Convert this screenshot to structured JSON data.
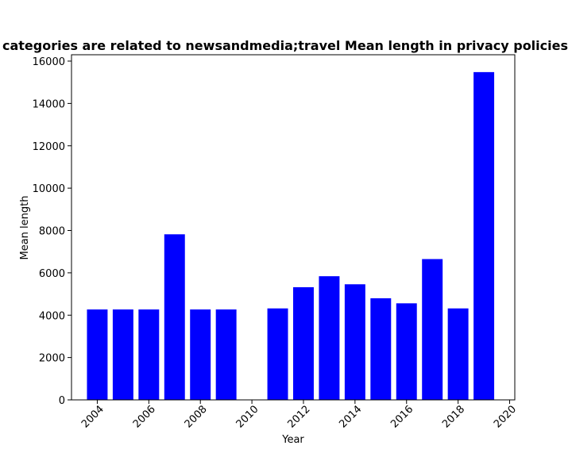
{
  "chart_data": {
    "type": "bar",
    "title": "categories are related to newsandmedia;travel Mean length in privacy policies",
    "xlabel": "Year",
    "ylabel": "Mean length",
    "x": [
      2004,
      2005,
      2006,
      2007,
      2008,
      2009,
      2011,
      2012,
      2013,
      2014,
      2015,
      2016,
      2017,
      2018,
      2019
    ],
    "values": [
      4270,
      4270,
      4270,
      7820,
      4270,
      4270,
      4320,
      5320,
      5840,
      5460,
      4800,
      4560,
      6650,
      4320,
      15480
    ],
    "xlim": [
      2003.0,
      2020.2
    ],
    "ylim": [
      0,
      16300
    ],
    "xticks": [
      2004,
      2006,
      2008,
      2010,
      2012,
      2014,
      2016,
      2018,
      2020
    ],
    "yticks": [
      0,
      2000,
      4000,
      6000,
      8000,
      10000,
      12000,
      14000,
      16000
    ],
    "bar_color": "#0000ff",
    "grid": false,
    "legend": false
  }
}
